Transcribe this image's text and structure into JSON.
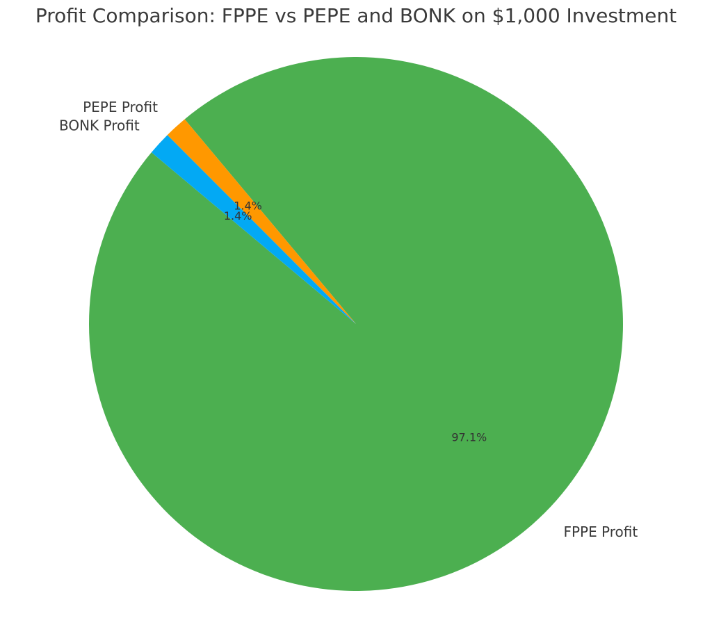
{
  "chart_data": {
    "type": "pie",
    "title": "Profit Comparison: FPPE vs PEPE and BONK on $1,000 Investment",
    "categories": [
      "FPPE Profit",
      "PEPE Profit",
      "BONK Profit"
    ],
    "values": [
      97.1,
      1.4,
      1.4
    ],
    "percent_labels": [
      "97.1%",
      "1.4%",
      "1.4%"
    ],
    "colors": [
      "#4caf50",
      "#ff9800",
      "#03a9f4"
    ],
    "start_angle_deg": 140,
    "direction": "counterclockwise",
    "legend": "none"
  }
}
